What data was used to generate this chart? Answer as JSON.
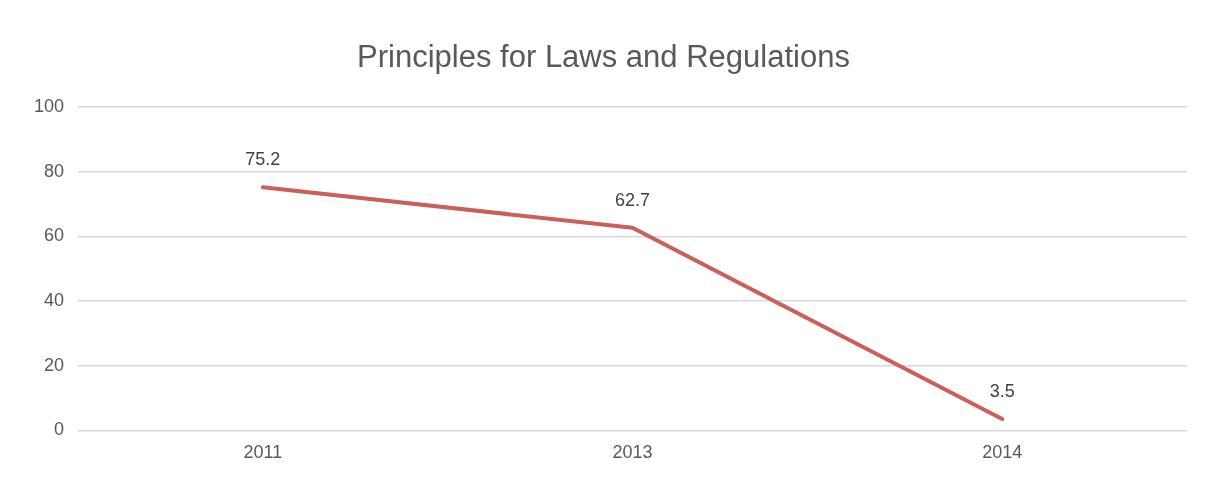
{
  "chart_data": {
    "type": "line",
    "title": "Principles for Laws and Regulations",
    "categories": [
      "2011",
      "2013",
      "2014"
    ],
    "values": [
      75.2,
      62.7,
      3.5
    ],
    "color": "#c9615a",
    "ylim": [
      0,
      100
    ],
    "yticks": [
      0,
      20,
      40,
      60,
      80,
      100
    ],
    "grid": "y",
    "legend": false,
    "marker": "none",
    "line_style": "solid",
    "data_labels": true
  }
}
